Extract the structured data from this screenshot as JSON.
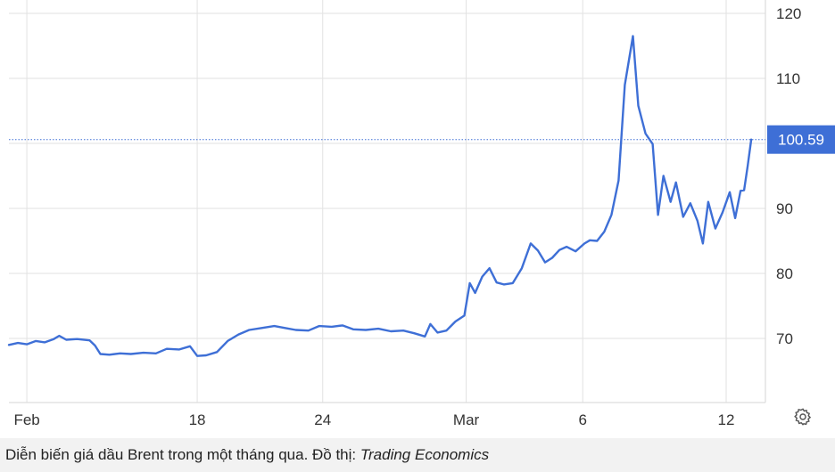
{
  "chart_data": {
    "type": "line",
    "title": "",
    "xlabel": "",
    "ylabel": "",
    "ylim": [
      60,
      122
    ],
    "yticks": [
      70,
      80,
      90,
      100,
      110,
      120
    ],
    "xlim": [
      0,
      41
    ],
    "xticks": [
      {
        "x": 1,
        "label": "Feb"
      },
      {
        "x": 10.5,
        "label": "18"
      },
      {
        "x": 17.5,
        "label": "24"
      },
      {
        "x": 25.5,
        "label": "Mar"
      },
      {
        "x": 32,
        "label": "6"
      },
      {
        "x": 40,
        "label": "12"
      }
    ],
    "grid": true,
    "last_value": 100.59,
    "last_value_label": "100.59",
    "series": [
      {
        "color": "#3e6fd6",
        "points": [
          [
            0,
            69.0
          ],
          [
            0.5,
            69.3
          ],
          [
            1,
            69.1
          ],
          [
            1.5,
            69.6
          ],
          [
            2,
            69.4
          ],
          [
            2.5,
            69.9
          ],
          [
            2.8,
            70.4
          ],
          [
            3.2,
            69.8
          ],
          [
            3.8,
            69.9
          ],
          [
            4.5,
            69.7
          ],
          [
            4.8,
            68.9
          ],
          [
            5.1,
            67.6
          ],
          [
            5.6,
            67.5
          ],
          [
            6.2,
            67.7
          ],
          [
            6.8,
            67.6
          ],
          [
            7.5,
            67.8
          ],
          [
            8.2,
            67.7
          ],
          [
            8.8,
            68.4
          ],
          [
            9.5,
            68.3
          ],
          [
            10.1,
            68.8
          ],
          [
            10.5,
            67.3
          ],
          [
            11,
            67.4
          ],
          [
            11.6,
            67.9
          ],
          [
            12.2,
            69.6
          ],
          [
            12.8,
            70.6
          ],
          [
            13.4,
            71.3
          ],
          [
            14.1,
            71.6
          ],
          [
            14.8,
            71.9
          ],
          [
            15.4,
            71.6
          ],
          [
            16,
            71.3
          ],
          [
            16.7,
            71.2
          ],
          [
            17.3,
            71.9
          ],
          [
            18,
            71.8
          ],
          [
            18.6,
            72.0
          ],
          [
            19.2,
            71.4
          ],
          [
            19.9,
            71.3
          ],
          [
            20.6,
            71.5
          ],
          [
            21.3,
            71.1
          ],
          [
            22,
            71.2
          ],
          [
            22.6,
            70.8
          ],
          [
            23.2,
            70.3
          ],
          [
            23.5,
            72.2
          ],
          [
            23.9,
            70.9
          ],
          [
            24.4,
            71.2
          ],
          [
            24.9,
            72.6
          ],
          [
            25.4,
            73.5
          ],
          [
            25.7,
            78.5
          ],
          [
            26,
            77.0
          ],
          [
            26.4,
            79.5
          ],
          [
            26.8,
            80.8
          ],
          [
            27.2,
            78.6
          ],
          [
            27.6,
            78.3
          ],
          [
            28.1,
            78.5
          ],
          [
            28.6,
            80.8
          ],
          [
            29.1,
            84.6
          ],
          [
            29.5,
            83.5
          ],
          [
            29.9,
            81.7
          ],
          [
            30.3,
            82.4
          ],
          [
            30.7,
            83.6
          ],
          [
            31.1,
            84.1
          ],
          [
            31.6,
            83.4
          ],
          [
            32.1,
            84.6
          ],
          [
            32.4,
            85.1
          ],
          [
            32.8,
            85.0
          ],
          [
            33.2,
            86.4
          ],
          [
            33.6,
            89.0
          ],
          [
            34,
            94.3
          ],
          [
            34.35,
            109.0
          ],
          [
            34.8,
            116.5
          ],
          [
            35.1,
            105.8
          ],
          [
            35.5,
            101.5
          ],
          [
            35.9,
            99.9
          ],
          [
            36.2,
            89.0
          ],
          [
            36.5,
            95.0
          ],
          [
            36.9,
            91.0
          ],
          [
            37.2,
            94.0
          ],
          [
            37.6,
            88.7
          ],
          [
            38,
            90.8
          ],
          [
            38.4,
            88.1
          ],
          [
            38.7,
            84.6
          ],
          [
            39,
            91.0
          ],
          [
            39.4,
            86.9
          ],
          [
            39.8,
            89.4
          ],
          [
            40.2,
            92.5
          ],
          [
            40.5,
            88.5
          ],
          [
            40.8,
            92.7
          ],
          [
            41,
            92.8
          ],
          [
            41.2,
            96.5
          ],
          [
            41.4,
            100.59
          ]
        ]
      }
    ]
  },
  "caption": {
    "text": "Diễn biến giá dầu Brent trong một tháng qua. Đồ thị: ",
    "source": "Trading Economics"
  },
  "toolbar": {
    "settings_icon": "gear-icon"
  }
}
